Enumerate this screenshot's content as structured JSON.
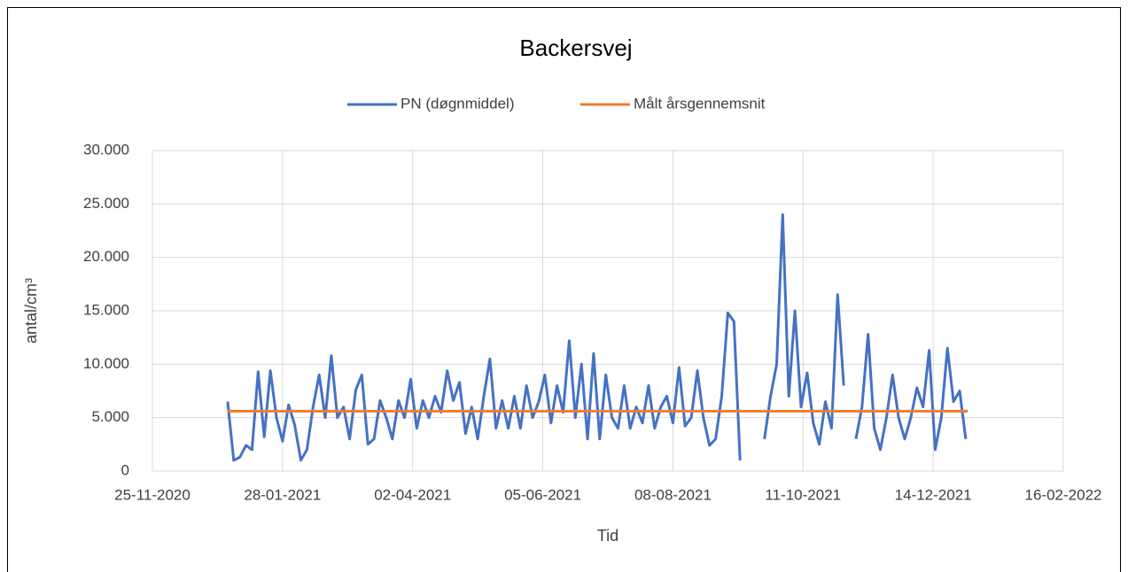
{
  "chart_data": {
    "type": "line",
    "title": "Backersvej",
    "xlabel": "Tid",
    "ylabel": "antal/cm³",
    "legend": "top",
    "grid": true,
    "xlim": [
      "2020-11-25",
      "2022-02-16"
    ],
    "xticks": [
      {
        "value": "2020-11-25",
        "label": "25-11-2020"
      },
      {
        "value": "2021-01-28",
        "label": "28-01-2021"
      },
      {
        "value": "2021-04-02",
        "label": "02-04-2021"
      },
      {
        "value": "2021-06-05",
        "label": "05-06-2021"
      },
      {
        "value": "2021-08-08",
        "label": "08-08-2021"
      },
      {
        "value": "2021-10-11",
        "label": "11-10-2021"
      },
      {
        "value": "2021-12-14",
        "label": "14-12-2021"
      },
      {
        "value": "2022-02-16",
        "label": "16-02-2022"
      }
    ],
    "ylim": [
      0,
      30000
    ],
    "yticks": [
      0,
      {
        "value": 5000,
        "label": "5.000"
      },
      {
        "value": 10000,
        "label": "10.000"
      },
      {
        "value": 15000,
        "label": "15.000"
      },
      {
        "value": 20000,
        "label": "20.000"
      },
      {
        "value": 25000,
        "label": "25.000"
      },
      {
        "value": 30000,
        "label": "30.000"
      }
    ],
    "series": [
      {
        "name": "PN (døgnmiddel)",
        "color": "#4472c4",
        "x": [
          "2021-01-01",
          "2021-01-04",
          "2021-01-07",
          "2021-01-10",
          "2021-01-13",
          "2021-01-16",
          "2021-01-19",
          "2021-01-22",
          "2021-01-25",
          "2021-01-28",
          "2021-01-31",
          "2021-02-03",
          "2021-02-06",
          "2021-02-09",
          "2021-02-12",
          "2021-02-15",
          "2021-02-18",
          "2021-02-21",
          "2021-02-24",
          "2021-02-27",
          "2021-03-02",
          "2021-03-05",
          "2021-03-08",
          "2021-03-11",
          "2021-03-14",
          "2021-03-17",
          "2021-03-20",
          "2021-03-23",
          "2021-03-26",
          "2021-03-29",
          "2021-04-01",
          "2021-04-04",
          "2021-04-07",
          "2021-04-10",
          "2021-04-13",
          "2021-04-16",
          "2021-04-19",
          "2021-04-22",
          "2021-04-25",
          "2021-04-28",
          "2021-05-01",
          "2021-05-04",
          "2021-05-07",
          "2021-05-10",
          "2021-05-13",
          "2021-05-16",
          "2021-05-19",
          "2021-05-22",
          "2021-05-25",
          "2021-05-28",
          "2021-05-31",
          "2021-06-03",
          "2021-06-06",
          "2021-06-09",
          "2021-06-12",
          "2021-06-15",
          "2021-06-18",
          "2021-06-21",
          "2021-06-24",
          "2021-06-27",
          "2021-06-30",
          "2021-07-03",
          "2021-07-06",
          "2021-07-09",
          "2021-07-12",
          "2021-07-15",
          "2021-07-18",
          "2021-07-21",
          "2021-07-24",
          "2021-07-27",
          "2021-07-30",
          "2021-08-02",
          "2021-08-05",
          "2021-08-08",
          "2021-08-11",
          "2021-08-14",
          "2021-08-17",
          "2021-08-20",
          "2021-08-23",
          "2021-08-26",
          "2021-08-29",
          "2021-09-01",
          "2021-09-04",
          "2021-09-07",
          "2021-09-10",
          "2021-09-13",
          "2021-09-16",
          "2021-09-19",
          "2021-09-22",
          "2021-09-25",
          "2021-09-28",
          "2021-10-01",
          "2021-10-04",
          "2021-10-07",
          "2021-10-10",
          "2021-10-13",
          "2021-10-16",
          "2021-10-19",
          "2021-10-22",
          "2021-10-25",
          "2021-10-28",
          "2021-10-31",
          "2021-11-03",
          "2021-11-06",
          "2021-11-09",
          "2021-11-12",
          "2021-11-15",
          "2021-11-18",
          "2021-11-21",
          "2021-11-24",
          "2021-11-27",
          "2021-11-30",
          "2021-12-03",
          "2021-12-06",
          "2021-12-09",
          "2021-12-12",
          "2021-12-15",
          "2021-12-18",
          "2021-12-21",
          "2021-12-24",
          "2021-12-27",
          "2021-12-30"
        ],
        "values": [
          6500,
          1000,
          1300,
          2400,
          2000,
          9300,
          3200,
          9400,
          5000,
          2800,
          6200,
          4300,
          1000,
          2000,
          6000,
          9000,
          5000,
          10800,
          5000,
          6000,
          3000,
          7600,
          9000,
          2500,
          3000,
          6600,
          5000,
          3000,
          6600,
          5000,
          8600,
          4000,
          6600,
          5000,
          7000,
          5500,
          9400,
          6600,
          8300,
          3500,
          6000,
          3000,
          7000,
          10500,
          4000,
          6600,
          4000,
          7000,
          4000,
          8000,
          5000,
          6500,
          9000,
          4500,
          8000,
          5500,
          12200,
          5000,
          10000,
          3000,
          11000,
          3000,
          9000,
          5000,
          4000,
          8000,
          4000,
          6000,
          4500,
          8000,
          4000,
          6000,
          7000,
          4500,
          9700,
          4200,
          5000,
          9400,
          5000,
          2400,
          3000,
          7000,
          14800,
          14000,
          1000,
          null,
          2500,
          null,
          3000,
          7000,
          10000,
          24000,
          7000,
          15000,
          6000,
          9200,
          4500,
          2500,
          6500,
          4000,
          16500,
          8000,
          null,
          3000,
          6000,
          12800,
          4000,
          2000,
          5000,
          9000,
          5000,
          3000,
          5000,
          7800,
          6000,
          11300,
          2000,
          5000,
          11500,
          6500,
          7500,
          3000
        ]
      },
      {
        "name": "Målt årsgennemsnit",
        "color": "#ed7d31",
        "x": [
          "2021-01-01",
          "2021-12-31"
        ],
        "values": [
          5600,
          5600
        ]
      }
    ]
  }
}
